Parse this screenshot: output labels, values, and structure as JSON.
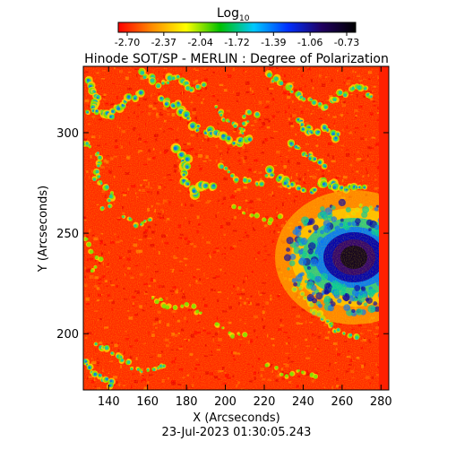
{
  "colorbar": {
    "label_base": "Log",
    "label_subscript": "10",
    "ticks": [
      "-2.70",
      "-2.37",
      "-2.04",
      "-1.72",
      "-1.39",
      "-1.06",
      "-0.73"
    ],
    "colors": [
      "#ff0000",
      "#ff8c00",
      "#ffff00",
      "#00c000",
      "#00c8ff",
      "#0030ff",
      "#200060",
      "#000000"
    ]
  },
  "title": "Hinode SOT/SP - MERLIN : Degree of Polarization",
  "axes": {
    "xlabel": "X (Arcseconds)",
    "ylabel": "Y (Arcseconds)",
    "xticks": [
      "140",
      "160",
      "180",
      "200",
      "220",
      "240",
      "260",
      "280"
    ],
    "yticks": [
      "200",
      "250",
      "300"
    ],
    "xlim": [
      127,
      284
    ],
    "ylim": [
      172,
      333
    ]
  },
  "map": {
    "background_color": "#ff2a00",
    "mottle_colors": [
      "#ff5a00",
      "#ff0000",
      "#ff7a00",
      "#e80000"
    ],
    "network_colors": [
      "#ffd200",
      "#6ee000",
      "#00c0c0",
      "#0060ff",
      "#0000d0"
    ],
    "sunspot_colors": [
      "#ffd000",
      "#00c8a0",
      "#0070ff",
      "#0000b0",
      "#300070",
      "#100020"
    ]
  },
  "timestamp": "23-Jul-2023 01:30:05.243"
}
